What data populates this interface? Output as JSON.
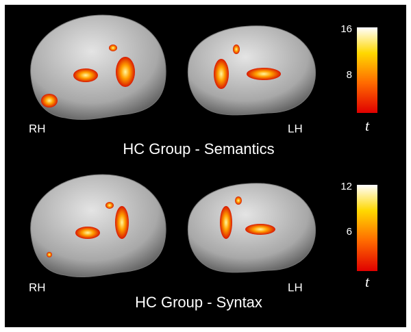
{
  "panels": [
    {
      "title": "HC Group - Semantics",
      "right_label": "RH",
      "left_label": "LH",
      "colorbar_ticks": [
        16,
        8
      ],
      "colorbar_label": "t"
    },
    {
      "title": "HC Group - Syntax",
      "right_label": "RH",
      "left_label": "LH",
      "colorbar_ticks": [
        12,
        6
      ],
      "colorbar_label": "t"
    }
  ]
}
